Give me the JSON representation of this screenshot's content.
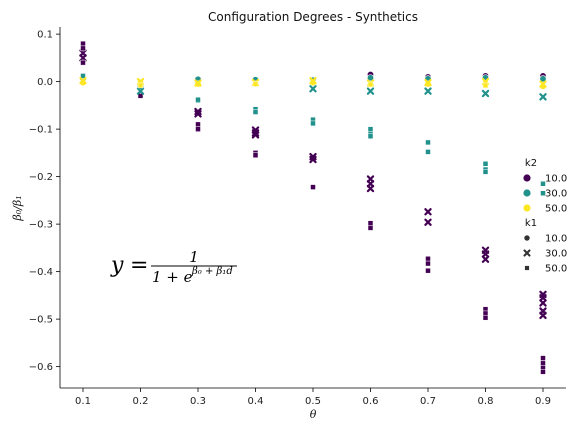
{
  "chart_data": {
    "type": "scatter",
    "title": "Configuration Degrees - Synthetics",
    "xlabel": "θ",
    "ylabel": "β₀/β₁",
    "xlim": [
      0.06,
      0.94
    ],
    "ylim": [
      -0.645,
      0.115
    ],
    "x_ticks": [
      0.1,
      0.2,
      0.3,
      0.4,
      0.5,
      0.6,
      0.7,
      0.8,
      0.9
    ],
    "x_tick_labels": [
      "0.1",
      "0.2",
      "0.3",
      "0.4",
      "0.5",
      "0.6",
      "0.7",
      "0.8",
      "0.9"
    ],
    "y_ticks": [
      0.1,
      0.0,
      -0.1,
      -0.2,
      -0.3,
      -0.4,
      -0.5,
      -0.6
    ],
    "y_tick_labels": [
      "0.1",
      "0.0",
      "−0.1",
      "−0.2",
      "−0.3",
      "−0.4",
      "−0.5",
      "−0.6"
    ],
    "grid": false,
    "legend_placement": "right",
    "annotation": {
      "lhs": "y",
      "eq": "=",
      "numerator": "1",
      "denominator_base": "1 + e",
      "exponent": "β₀ + β₁d"
    },
    "hue": {
      "title": "k2",
      "levels": [
        {
          "label": "10.0",
          "color": "#440154"
        },
        {
          "label": "30.0",
          "color": "#21918c"
        },
        {
          "label": "50.0",
          "color": "#fde725"
        }
      ]
    },
    "style": {
      "title": "k1",
      "levels": [
        {
          "label": "10.0",
          "marker": "circle"
        },
        {
          "label": "30.0",
          "marker": "x"
        },
        {
          "label": "50.0",
          "marker": "square"
        }
      ]
    },
    "series": [
      {
        "k2": "10.0",
        "k1": "10.0",
        "x": [
          0.6,
          0.7,
          0.8,
          0.9
        ],
        "y": [
          0.015,
          0.01,
          0.012,
          0.012
        ]
      },
      {
        "k2": "10.0",
        "k1": "30.0",
        "x": [
          0.1,
          0.1,
          0.3,
          0.3,
          0.4,
          0.4,
          0.4,
          0.5,
          0.5,
          0.6,
          0.6,
          0.6,
          0.7,
          0.7,
          0.8,
          0.8,
          0.8,
          0.9,
          0.9,
          0.9,
          0.9,
          0.9
        ],
        "y": [
          0.05,
          0.06,
          -0.063,
          -0.068,
          -0.102,
          -0.108,
          -0.112,
          -0.158,
          -0.164,
          -0.205,
          -0.215,
          -0.225,
          -0.274,
          -0.296,
          -0.355,
          -0.363,
          -0.374,
          -0.448,
          -0.455,
          -0.466,
          -0.483,
          -0.492
        ]
      },
      {
        "k2": "10.0",
        "k1": "50.0",
        "x": [
          0.1,
          0.1,
          0.1,
          0.2,
          0.3,
          0.3,
          0.4,
          0.4,
          0.5,
          0.6,
          0.6,
          0.7,
          0.7,
          0.7,
          0.8,
          0.8,
          0.8,
          0.9,
          0.9,
          0.9,
          0.9
        ],
        "y": [
          0.08,
          0.07,
          0.04,
          -0.03,
          -0.09,
          -0.1,
          -0.15,
          -0.155,
          -0.222,
          -0.298,
          -0.308,
          -0.373,
          -0.383,
          -0.398,
          -0.479,
          -0.488,
          -0.497,
          -0.582,
          -0.593,
          -0.603,
          -0.611
        ]
      },
      {
        "k2": "30.0",
        "k1": "10.0",
        "x": [
          0.1,
          0.2,
          0.3,
          0.4,
          0.5,
          0.6,
          0.7,
          0.8,
          0.9
        ],
        "y": [
          0.005,
          -0.01,
          0.005,
          0.004,
          0.003,
          0.008,
          0.006,
          0.008,
          0.006
        ]
      },
      {
        "k2": "30.0",
        "k1": "30.0",
        "x": [
          0.2,
          0.5,
          0.6,
          0.7,
          0.8,
          0.9
        ],
        "y": [
          -0.02,
          -0.015,
          -0.02,
          -0.02,
          -0.025,
          -0.032
        ]
      },
      {
        "k2": "30.0",
        "k1": "50.0",
        "x": [
          0.1,
          0.3,
          0.3,
          0.4,
          0.4,
          0.5,
          0.5,
          0.6,
          0.6,
          0.6,
          0.7,
          0.7,
          0.8,
          0.8,
          0.8,
          0.9,
          0.9
        ],
        "y": [
          0.012,
          -0.04,
          -0.038,
          -0.058,
          -0.064,
          -0.08,
          -0.088,
          -0.1,
          -0.11,
          -0.115,
          -0.128,
          -0.148,
          -0.173,
          -0.185,
          -0.19,
          -0.215,
          -0.235
        ]
      },
      {
        "k2": "50.0",
        "k1": "10.0",
        "x": [
          0.1,
          0.2,
          0.3,
          0.4,
          0.5,
          0.6,
          0.7,
          0.8,
          0.9
        ],
        "y": [
          -0.002,
          -0.002,
          -0.005,
          -0.005,
          -0.002,
          -0.005,
          -0.005,
          -0.004,
          -0.01
        ]
      },
      {
        "k2": "50.0",
        "k1": "30.0",
        "x": [
          0.1,
          0.2,
          0.3,
          0.4,
          0.5,
          0.6,
          0.7,
          0.8,
          0.9
        ],
        "y": [
          0.002,
          0.0,
          -0.003,
          -0.002,
          0.002,
          -0.003,
          -0.002,
          0.0,
          -0.005
        ]
      },
      {
        "k2": "50.0",
        "k1": "50.0",
        "x": [
          0.2,
          0.4,
          0.6,
          0.8
        ],
        "y": [
          -0.008,
          -0.005,
          -0.006,
          -0.008
        ]
      }
    ]
  }
}
